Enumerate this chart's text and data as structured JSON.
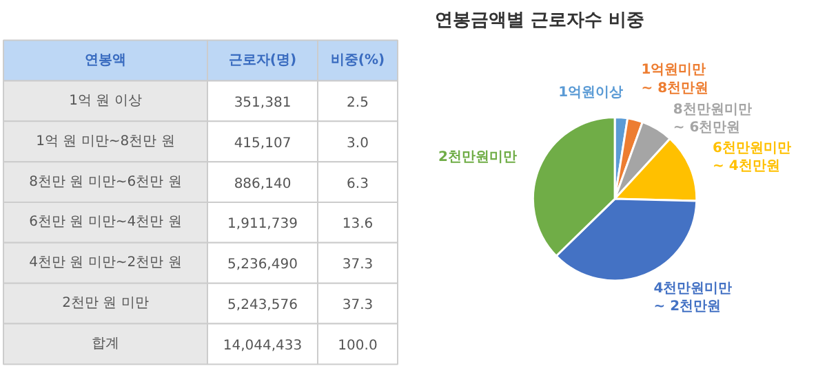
{
  "chart_data": [
    {
      "type": "other",
      "annotations": [
        "연봉액",
        "근로자(명)",
        "비중(%)",
        "1억 원 이상",
        "351,381",
        "2.5",
        "1억 원 미만~8천만 원",
        "415,107",
        "3.0",
        "8천만 원 미만~6천만 원",
        "886,140",
        "6.3",
        "6천만 원 미만~4천만 원",
        "1,911,739",
        "13.6",
        "4천만 원 미만~2천만 원",
        "5,236,490",
        "37.3",
        "2천만 원 미만",
        "5,243,576",
        "37.3",
        "합계",
        "14,044,433",
        "100.0"
      ]
    },
    {
      "type": "pie",
      "title": "연봉금액별 근로자수 비중",
      "categories": [
        "1억원이상",
        "1억원미만\n~ 8천만원",
        "8천만원미만\n~ 6천만원",
        "6천만원미만\n~ 4천만원",
        "4천만원미만\n~ 2천만원",
        "2천만원미만"
      ],
      "values": [
        2.5,
        3.0,
        6.3,
        13.6,
        37.3,
        37.3
      ],
      "colors": [
        "#5b9bd5",
        "#ed7d31",
        "#a5a5a5",
        "#ffc000",
        "#4472c4",
        "#70ad47"
      ]
    }
  ]
}
